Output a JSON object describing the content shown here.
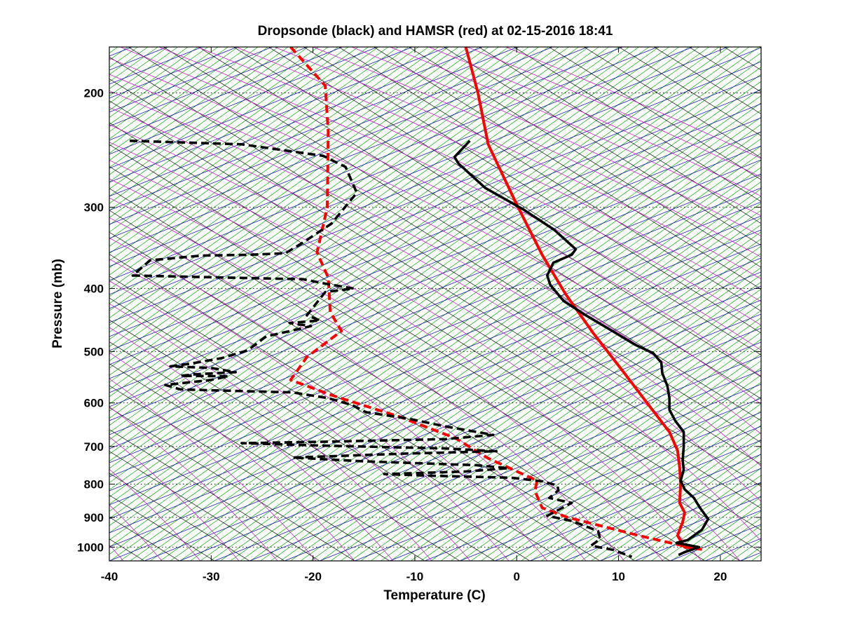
{
  "chart_data": {
    "type": "line",
    "title": "Dropsonde (black) and HAMSR (red) at 02-15-2016 18:41",
    "xlabel": "Temperature (C)",
    "ylabel": "Pressure (mb)",
    "xlim": [
      -40,
      24
    ],
    "ylim": [
      1050,
      170
    ],
    "y_scale": "log",
    "x_ticks": [
      -40,
      -30,
      -20,
      -10,
      0,
      10,
      20
    ],
    "x_tick_labels": [
      "-40",
      "-30",
      "-20",
      "-10",
      "0",
      "10",
      "20"
    ],
    "y_ticks": [
      200,
      300,
      400,
      500,
      600,
      700,
      800,
      900,
      1000
    ],
    "y_tick_labels": [
      "200",
      "300",
      "400",
      "500",
      "600",
      "700",
      "800",
      "900",
      "1000"
    ],
    "grid": "dotted",
    "diagram": "skew-T log-P",
    "background_lines": [
      {
        "name": "isotherms",
        "color": "#00b000"
      },
      {
        "name": "dry adiabats",
        "color": "#000000"
      },
      {
        "name": "moist adiabats",
        "color": "#d000d0"
      },
      {
        "name": "mixing ratio lines",
        "color": "#0000b0"
      }
    ],
    "series": [
      {
        "color": "#000000",
        "style": "solid",
        "points": [
          [
            -4.6,
            237
          ],
          [
            -6.1,
            251
          ],
          [
            -5.7,
            257
          ],
          [
            -3.1,
            280
          ],
          [
            0.6,
            302
          ],
          [
            3.7,
            325
          ],
          [
            5.8,
            348
          ],
          [
            5.4,
            355
          ],
          [
            3.6,
            365
          ],
          [
            3.0,
            382
          ],
          [
            3.3,
            395
          ],
          [
            4.6,
            418
          ],
          [
            6.8,
            440
          ],
          [
            9.4,
            465
          ],
          [
            11.6,
            488
          ],
          [
            13.4,
            503
          ],
          [
            14.2,
            520
          ],
          [
            14.3,
            540
          ],
          [
            14.8,
            565
          ],
          [
            15.0,
            590
          ],
          [
            15.0,
            615
          ],
          [
            15.6,
            640
          ],
          [
            16.4,
            665
          ],
          [
            16.4,
            700
          ],
          [
            16.3,
            735
          ],
          [
            16.4,
            760
          ],
          [
            16.1,
            790
          ],
          [
            16.5,
            815
          ],
          [
            17.4,
            840
          ],
          [
            18.0,
            870
          ],
          [
            18.8,
            905
          ],
          [
            18.2,
            940
          ],
          [
            16.8,
            975
          ],
          [
            15.7,
            985
          ],
          [
            17.9,
            1000
          ],
          [
            16.5,
            1018
          ],
          [
            15.9,
            1028
          ]
        ]
      },
      {
        "color": "#000000",
        "style": "dashed",
        "points": [
          [
            -38.0,
            237
          ],
          [
            -27.0,
            240
          ],
          [
            -19.0,
            250
          ],
          [
            -16.8,
            260
          ],
          [
            -15.7,
            285
          ],
          [
            -18.2,
            318
          ],
          [
            -21.0,
            340
          ],
          [
            -22.7,
            353
          ],
          [
            -26.3,
            355
          ],
          [
            -31.0,
            356
          ],
          [
            -36.0,
            362
          ],
          [
            -37.7,
            382
          ],
          [
            -28.0,
            385
          ],
          [
            -21.0,
            387
          ],
          [
            -18.5,
            394
          ],
          [
            -16.0,
            400
          ],
          [
            -18.8,
            405
          ],
          [
            -20.6,
            440
          ],
          [
            -19.3,
            448
          ],
          [
            -22.3,
            452
          ],
          [
            -20.2,
            457
          ],
          [
            -22.5,
            466
          ],
          [
            -24.6,
            474
          ],
          [
            -26.4,
            498
          ],
          [
            -29.0,
            512
          ],
          [
            -32.0,
            522
          ],
          [
            -34.0,
            527
          ],
          [
            -30.0,
            530
          ],
          [
            -27.6,
            538
          ],
          [
            -31.5,
            542
          ],
          [
            -33.0,
            545
          ],
          [
            -28.3,
            546
          ],
          [
            -30.0,
            553
          ],
          [
            -34.5,
            563
          ],
          [
            -33.0,
            572
          ],
          [
            -22.0,
            578
          ],
          [
            -18.5,
            590
          ],
          [
            -16.1,
            605
          ],
          [
            -14.8,
            620
          ],
          [
            -10.5,
            635
          ],
          [
            -7.0,
            652
          ],
          [
            -2.3,
            672
          ],
          [
            -7.0,
            682
          ],
          [
            -18.0,
            688
          ],
          [
            -27.0,
            692
          ],
          [
            -19.0,
            698
          ],
          [
            -7.0,
            705
          ],
          [
            -2.0,
            712
          ],
          [
            -11.0,
            718
          ],
          [
            -22.0,
            728
          ],
          [
            -15.0,
            738
          ],
          [
            -4.0,
            748
          ],
          [
            -0.8,
            756
          ],
          [
            -5.0,
            765
          ],
          [
            -13.0,
            772
          ],
          [
            -9.0,
            776
          ],
          [
            -0.5,
            782
          ],
          [
            2.5,
            792
          ],
          [
            4.0,
            804
          ],
          [
            4.1,
            818
          ],
          [
            3.2,
            840
          ],
          [
            5.4,
            855
          ],
          [
            3.0,
            895
          ],
          [
            5.5,
            912
          ],
          [
            8.0,
            945
          ],
          [
            8.2,
            972
          ],
          [
            7.3,
            995
          ],
          [
            9.5,
            1010
          ],
          [
            11.3,
            1035
          ]
        ]
      },
      {
        "color": "#ff0000",
        "style": "solid",
        "points": [
          [
            -5.0,
            170
          ],
          [
            -3.8,
            200
          ],
          [
            -2.8,
            240
          ],
          [
            -1.5,
            265
          ],
          [
            0.0,
            297
          ],
          [
            2.5,
            355
          ],
          [
            4.8,
            408
          ],
          [
            7.5,
            468
          ],
          [
            10.5,
            538
          ],
          [
            12.8,
            600
          ],
          [
            15.0,
            665
          ],
          [
            15.8,
            710
          ],
          [
            16.0,
            755
          ],
          [
            16.1,
            800
          ],
          [
            16.0,
            855
          ],
          [
            16.5,
            885
          ],
          [
            16.3,
            915
          ],
          [
            15.8,
            960
          ],
          [
            16.5,
            1000
          ],
          [
            18.2,
            1008
          ]
        ]
      },
      {
        "color": "#ff0000",
        "style": "dashed",
        "points": [
          [
            -22.2,
            170
          ],
          [
            -18.8,
            195
          ],
          [
            -18.5,
            230
          ],
          [
            -18.6,
            300
          ],
          [
            -19.2,
            330
          ],
          [
            -19.6,
            352
          ],
          [
            -18.5,
            385
          ],
          [
            -18.3,
            435
          ],
          [
            -17.2,
            465
          ],
          [
            -20.6,
            510
          ],
          [
            -22.2,
            553
          ],
          [
            -18.0,
            585
          ],
          [
            -11.5,
            630
          ],
          [
            -6.0,
            680
          ],
          [
            -2.8,
            730
          ],
          [
            2.0,
            790
          ],
          [
            1.8,
            820
          ],
          [
            2.5,
            870
          ],
          [
            5.0,
            900
          ],
          [
            8.0,
            925
          ],
          [
            12.0,
            960
          ],
          [
            17.5,
            1005
          ]
        ]
      }
    ]
  }
}
